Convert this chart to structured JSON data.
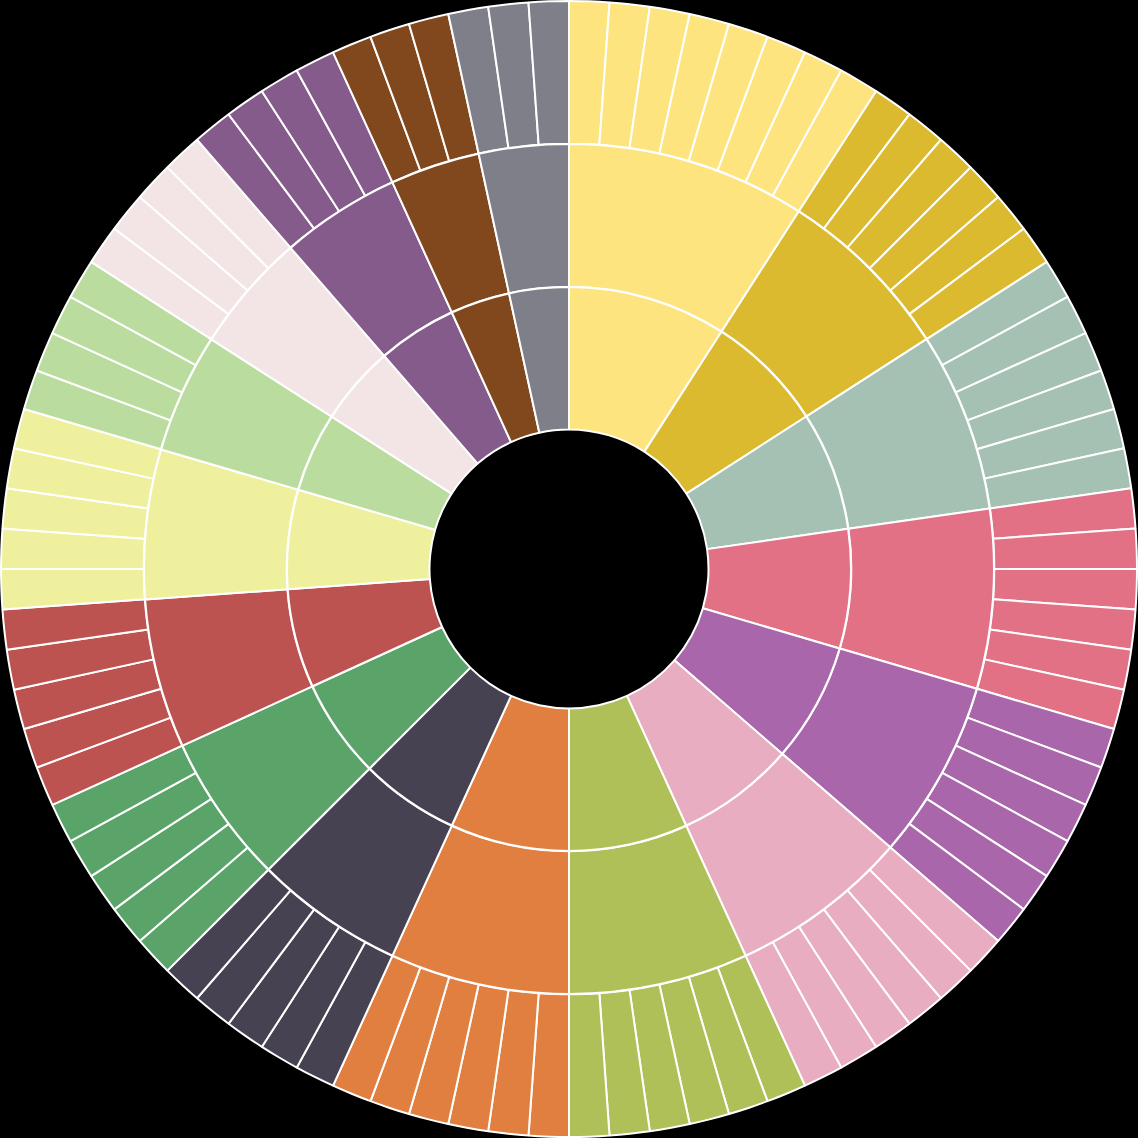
{
  "chart_data": [
    {
      "type": "donut",
      "legend": false,
      "categories": [
        null,
        null,
        null,
        null,
        null,
        null,
        null,
        null,
        null,
        null,
        null,
        null,
        null,
        null,
        null,
        null,
        null
      ],
      "values": [
        9.09,
        6.82,
        6.82,
        6.82,
        6.82,
        6.82,
        6.82,
        6.82,
        5.68,
        5.68,
        5.68,
        5.68,
        4.55,
        4.55,
        4.55,
        3.41,
        3.41
      ],
      "colors": [
        "#fde47f",
        "#dbba2f",
        "#a5c1b4",
        "#e37186",
        "#a966aa",
        "#e8adc0",
        "#aec057",
        "#e17f41",
        "#464252",
        "#5aa46a",
        "#bd5351",
        "#eff09e",
        "#badd9f",
        "#f3e5e5",
        "#855b8b",
        "#81471d",
        "#7e7f89"
      ]
    },
    {
      "type": "donut",
      "legend": false,
      "categories": [
        null,
        null,
        null,
        null,
        null,
        null,
        null,
        null,
        null,
        null,
        null,
        null,
        null,
        null,
        null,
        null,
        null
      ],
      "values": [
        9.09,
        6.82,
        6.82,
        6.82,
        6.82,
        6.82,
        6.82,
        6.82,
        5.68,
        5.68,
        5.68,
        5.68,
        4.55,
        4.55,
        4.55,
        3.41,
        3.41
      ],
      "colors": [
        "#fde47f",
        "#dbba2f",
        "#a5c1b4",
        "#e37186",
        "#a966aa",
        "#e8adc0",
        "#aec057",
        "#e17f41",
        "#464252",
        "#5aa46a",
        "#bd5351",
        "#eff09e",
        "#badd9f",
        "#f3e5e5",
        "#855b8b",
        "#81471d",
        "#7e7f89"
      ]
    },
    {
      "type": "donut",
      "legend": false,
      "categories": [
        null,
        null,
        null,
        null,
        null,
        null,
        null,
        null,
        null,
        null,
        null,
        null,
        null,
        null,
        null,
        null,
        null,
        null,
        null,
        null,
        null,
        null,
        null,
        null,
        null,
        null,
        null,
        null,
        null,
        null,
        null,
        null,
        null,
        null,
        null,
        null,
        null,
        null,
        null,
        null,
        null,
        null,
        null,
        null,
        null,
        null,
        null,
        null,
        null,
        null,
        null,
        null,
        null,
        null,
        null,
        null,
        null,
        null,
        null,
        null,
        null,
        null,
        null,
        null,
        null,
        null,
        null,
        null,
        null,
        null,
        null,
        null,
        null,
        null,
        null,
        null,
        null,
        null,
        null,
        null,
        null,
        null,
        null,
        null,
        null,
        null,
        null,
        null
      ],
      "values": [
        1.14,
        1.14,
        1.14,
        1.14,
        1.14,
        1.14,
        1.14,
        1.14,
        1.14,
        1.14,
        1.14,
        1.14,
        1.14,
        1.14,
        1.14,
        1.14,
        1.14,
        1.14,
        1.14,
        1.14,
        1.14,
        1.14,
        1.14,
        1.14,
        1.14,
        1.14,
        1.14,
        1.14,
        1.14,
        1.14,
        1.14,
        1.14,
        1.14,
        1.14,
        1.14,
        1.14,
        1.14,
        1.14,
        1.14,
        1.14,
        1.14,
        1.14,
        1.14,
        1.14,
        1.14,
        1.14,
        1.14,
        1.14,
        1.14,
        1.14,
        1.14,
        1.14,
        1.14,
        1.14,
        1.14,
        1.14,
        1.14,
        1.14,
        1.14,
        1.14,
        1.14,
        1.14,
        1.14,
        1.14,
        1.14,
        1.14,
        1.14,
        1.14,
        1.14,
        1.14,
        1.14,
        1.14,
        1.14,
        1.14,
        1.14,
        1.14,
        1.14,
        1.14,
        1.14,
        1.14,
        1.14,
        1.14,
        1.14,
        1.14,
        1.14,
        1.14,
        1.14,
        1.14
      ],
      "colors": [
        "#fde47f",
        "#fde47f",
        "#fde47f",
        "#fde47f",
        "#fde47f",
        "#fde47f",
        "#fde47f",
        "#fde47f",
        "#dbba2f",
        "#dbba2f",
        "#dbba2f",
        "#dbba2f",
        "#dbba2f",
        "#dbba2f",
        "#a5c1b4",
        "#a5c1b4",
        "#a5c1b4",
        "#a5c1b4",
        "#a5c1b4",
        "#a5c1b4",
        "#e37186",
        "#e37186",
        "#e37186",
        "#e37186",
        "#e37186",
        "#e37186",
        "#a966aa",
        "#a966aa",
        "#a966aa",
        "#a966aa",
        "#a966aa",
        "#a966aa",
        "#e8adc0",
        "#e8adc0",
        "#e8adc0",
        "#e8adc0",
        "#e8adc0",
        "#e8adc0",
        "#aec057",
        "#aec057",
        "#aec057",
        "#aec057",
        "#aec057",
        "#aec057",
        "#e17f41",
        "#e17f41",
        "#e17f41",
        "#e17f41",
        "#e17f41",
        "#e17f41",
        "#464252",
        "#464252",
        "#464252",
        "#464252",
        "#464252",
        "#5aa46a",
        "#5aa46a",
        "#5aa46a",
        "#5aa46a",
        "#5aa46a",
        "#bd5351",
        "#bd5351",
        "#bd5351",
        "#bd5351",
        "#bd5351",
        "#eff09e",
        "#eff09e",
        "#eff09e",
        "#eff09e",
        "#eff09e",
        "#badd9f",
        "#badd9f",
        "#badd9f",
        "#badd9f",
        "#f3e5e5",
        "#f3e5e5",
        "#f3e5e5",
        "#f3e5e5",
        "#855b8b",
        "#855b8b",
        "#855b8b",
        "#855b8b",
        "#81471d",
        "#81471d",
        "#81471d",
        "#7e7f89",
        "#7e7f89",
        "#7e7f89"
      ]
    }
  ]
}
